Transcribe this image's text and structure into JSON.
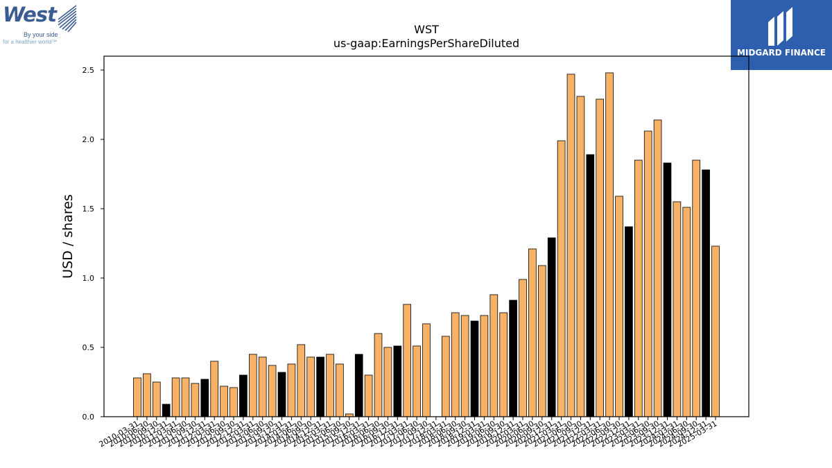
{
  "logos": {
    "left": {
      "name": "West",
      "tagline_1": "By your side",
      "tagline_2": "for a healthier world™"
    },
    "right": {
      "name": "MIDGARD FINANCE"
    }
  },
  "chart_data": {
    "type": "bar",
    "title": "WST",
    "subtitle": "us-gaap:EarningsPerShareDiluted",
    "ylabel": "USD / shares",
    "xlabel": "",
    "ylim": [
      0,
      2.6
    ],
    "yticks": [
      "0.0",
      "0.5",
      "1.0",
      "1.5",
      "2.0",
      "2.5"
    ],
    "grid": false,
    "colors": {
      "quarter": "#f7b267",
      "annual": "#000000",
      "edge": "#000000"
    },
    "categories": [
      "2010-03-31",
      "2010-06-30",
      "2010-09-30",
      "2010-12-31",
      "2011-03-31",
      "2011-06-30",
      "2011-09-30",
      "2011-12-31",
      "2012-03-31",
      "2012-06-30",
      "2012-09-30",
      "2012-12-31",
      "2013-03-31",
      "2013-06-30",
      "2013-09-30",
      "2013-12-31",
      "2014-03-31",
      "2014-06-30",
      "2014-09-30",
      "2014-12-31",
      "2015-03-31",
      "2015-06-30",
      "2015-09-30",
      "2015-12-31",
      "2016-03-31",
      "2016-06-30",
      "2016-09-30",
      "2016-12-31",
      "2017-03-31",
      "2017-06-30",
      "2017-09-30",
      "2017-12-31",
      "2018-03-31",
      "2018-06-30",
      "2018-09-30",
      "2018-12-31",
      "2019-03-31",
      "2019-06-30",
      "2019-09-30",
      "2019-12-31",
      "2020-03-31",
      "2020-06-30",
      "2020-09-30",
      "2020-12-31",
      "2021-03-31",
      "2021-06-30",
      "2021-09-30",
      "2021-12-31",
      "2022-03-31",
      "2022-06-30",
      "2022-09-30",
      "2022-12-31",
      "2023-03-31",
      "2023-06-30",
      "2023-09-30",
      "2023-12-31",
      "2024-03-31",
      "2024-06-30",
      "2024-09-30",
      "2024-12-31",
      "2025-03-31"
    ],
    "values": [
      0.28,
      0.31,
      0.25,
      0.09,
      0.28,
      0.28,
      0.24,
      0.27,
      0.4,
      0.22,
      0.21,
      0.3,
      0.45,
      0.43,
      0.37,
      0.32,
      0.38,
      0.52,
      0.43,
      0.43,
      0.45,
      0.38,
      0.02,
      0.45,
      0.3,
      0.6,
      0.5,
      0.51,
      0.81,
      0.51,
      0.67,
      0.0,
      0.58,
      0.75,
      0.73,
      0.69,
      0.73,
      0.88,
      0.75,
      0.84,
      0.99,
      1.21,
      1.09,
      1.29,
      1.99,
      2.47,
      2.31,
      1.89,
      2.29,
      2.48,
      1.59,
      1.37,
      1.85,
      2.06,
      2.14,
      1.83,
      1.55,
      1.51,
      1.85,
      1.78,
      1.23
    ],
    "annual": [
      false,
      false,
      false,
      true,
      false,
      false,
      false,
      true,
      false,
      false,
      false,
      true,
      false,
      false,
      false,
      true,
      false,
      false,
      false,
      true,
      false,
      false,
      false,
      true,
      false,
      false,
      false,
      true,
      false,
      false,
      false,
      true,
      false,
      false,
      false,
      true,
      false,
      false,
      false,
      true,
      false,
      false,
      false,
      true,
      false,
      false,
      false,
      true,
      false,
      false,
      false,
      true,
      false,
      false,
      false,
      true,
      false,
      false,
      false,
      true,
      false
    ]
  }
}
